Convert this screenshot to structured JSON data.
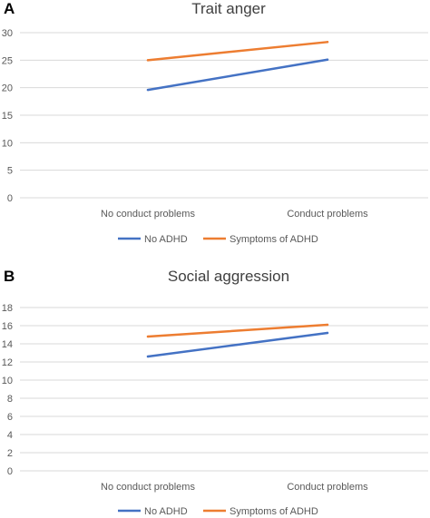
{
  "chart_data": [
    {
      "panel": "A",
      "type": "line",
      "title": "Trait anger",
      "categories": [
        "No conduct problems",
        "Conduct problems"
      ],
      "series": [
        {
          "name": "No ADHD",
          "values": [
            19.6,
            25.1
          ],
          "color": "#4472c4"
        },
        {
          "name": "Symptoms of ADHD",
          "values": [
            25.0,
            28.3
          ],
          "color": "#ed7d31"
        }
      ],
      "ylim": [
        0,
        30
      ],
      "yticks": [
        0,
        5,
        10,
        15,
        20,
        25,
        30
      ],
      "grid": true,
      "legend": "bottom"
    },
    {
      "panel": "B",
      "type": "line",
      "title": "Social aggression",
      "categories": [
        "No conduct problems",
        "Conduct problems"
      ],
      "series": [
        {
          "name": "No ADHD",
          "values": [
            12.6,
            15.2
          ],
          "color": "#4472c4"
        },
        {
          "name": "Symptoms of ADHD",
          "values": [
            14.8,
            16.1
          ],
          "color": "#ed7d31"
        }
      ],
      "ylim": [
        0,
        18
      ],
      "yticks": [
        0,
        2,
        4,
        6,
        8,
        10,
        12,
        14,
        16,
        18
      ],
      "grid": true,
      "legend": "bottom"
    }
  ]
}
